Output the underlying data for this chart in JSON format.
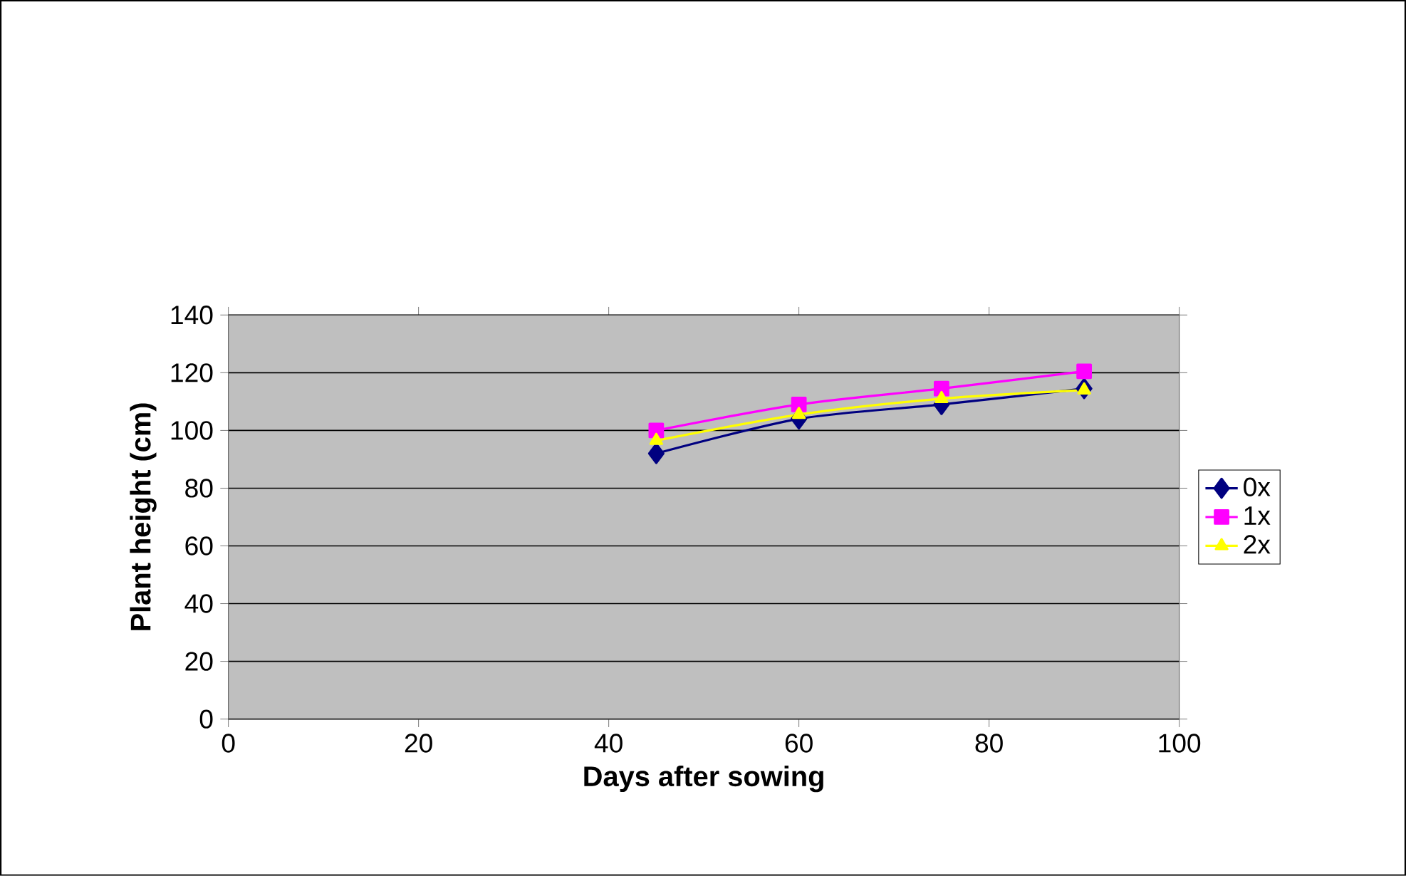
{
  "chart_data": {
    "type": "line",
    "xlabel": "Days after sowing",
    "ylabel": "Plant height (cm)",
    "x": [
      45,
      60,
      75,
      90
    ],
    "series": [
      {
        "name": "0x",
        "color": "#000080",
        "values": [
          92,
          104,
          109,
          114.5
        ],
        "marker": "diamond"
      },
      {
        "name": "1x",
        "color": "#ff00ff",
        "values": [
          100,
          109,
          114.5,
          120.5
        ],
        "marker": "square"
      },
      {
        "name": "2x",
        "color": "#ffff00",
        "values": [
          96.5,
          105.5,
          111,
          114
        ],
        "marker": "triangle"
      }
    ],
    "xlim": [
      0,
      100
    ],
    "xticks": [
      0,
      20,
      40,
      60,
      80,
      100
    ],
    "ylim": [
      0,
      140
    ],
    "yticks": [
      0,
      20,
      40,
      60,
      80,
      100,
      120,
      140
    ],
    "grid": "y",
    "legend": "right",
    "line_style": "solid"
  }
}
